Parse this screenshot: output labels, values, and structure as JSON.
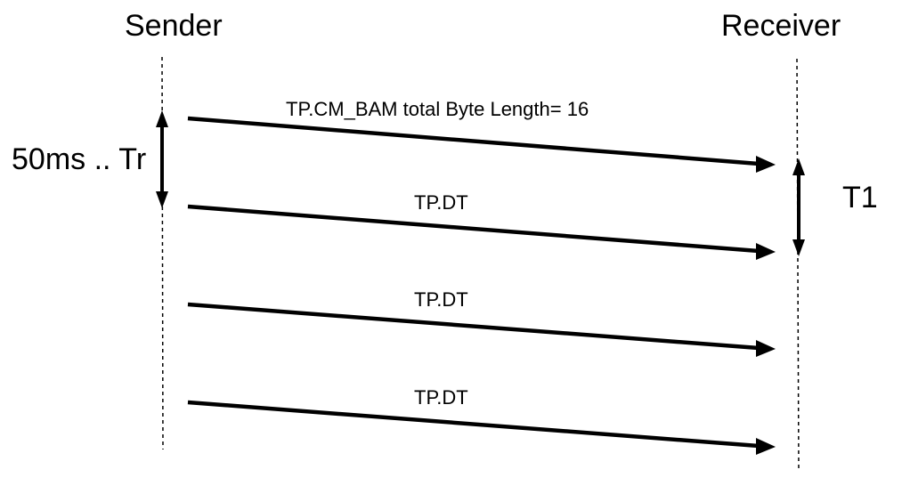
{
  "participants": {
    "sender": "Sender",
    "receiver": "Receiver"
  },
  "messages": [
    {
      "label": "TP.CM_BAM total Byte Length= 16"
    },
    {
      "label": "TP.DT"
    },
    {
      "label": "TP.DT"
    },
    {
      "label": "TP.DT"
    }
  ],
  "timing": {
    "sender_interval": "50ms .. Tr",
    "receiver_timeout": "T1"
  }
}
